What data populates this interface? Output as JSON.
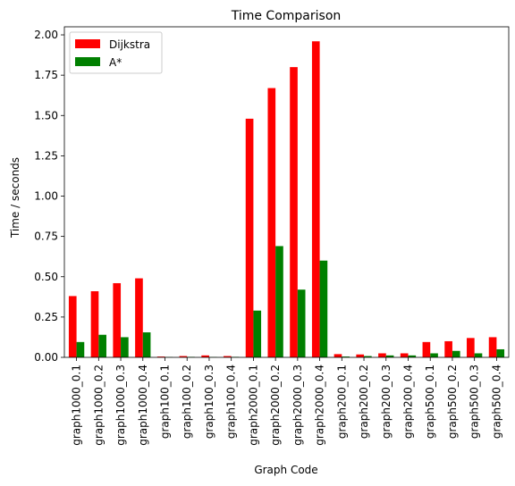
{
  "chart_data": {
    "type": "bar",
    "title": "Time Comparison",
    "xlabel": "Graph Code",
    "ylabel": "Time / seconds",
    "ylim": [
      0,
      2.05
    ],
    "yticks": [
      "0.00",
      "0.25",
      "0.50",
      "0.75",
      "1.00",
      "1.25",
      "1.50",
      "1.75",
      "2.00"
    ],
    "grid": false,
    "legend_position": "top-left",
    "categories": [
      "graph1000_0.1",
      "graph1000_0.2",
      "graph1000_0.3",
      "graph1000_0.4",
      "graph100_0.1",
      "graph100_0.2",
      "graph100_0.3",
      "graph100_0.4",
      "graph2000_0.1",
      "graph2000_0.2",
      "graph2000_0.3",
      "graph2000_0.4",
      "graph200_0.1",
      "graph200_0.2",
      "graph200_0.3",
      "graph200_0.4",
      "graph500_0.1",
      "graph500_0.2",
      "graph500_0.3",
      "graph500_0.4"
    ],
    "series": [
      {
        "name": "Dijkstra",
        "color": "#ff0000",
        "values": [
          0.38,
          0.41,
          0.46,
          0.49,
          0.005,
          0.008,
          0.012,
          0.008,
          1.48,
          1.67,
          1.8,
          1.96,
          0.02,
          0.018,
          0.025,
          0.025,
          0.095,
          0.1,
          0.12,
          0.125
        ]
      },
      {
        "name": "A*",
        "color": "#008000",
        "values": [
          0.095,
          0.14,
          0.125,
          0.155,
          0.002,
          0.003,
          0.002,
          0.003,
          0.29,
          0.69,
          0.42,
          0.6,
          0.005,
          0.008,
          0.012,
          0.012,
          0.025,
          0.04,
          0.025,
          0.05
        ]
      }
    ]
  }
}
